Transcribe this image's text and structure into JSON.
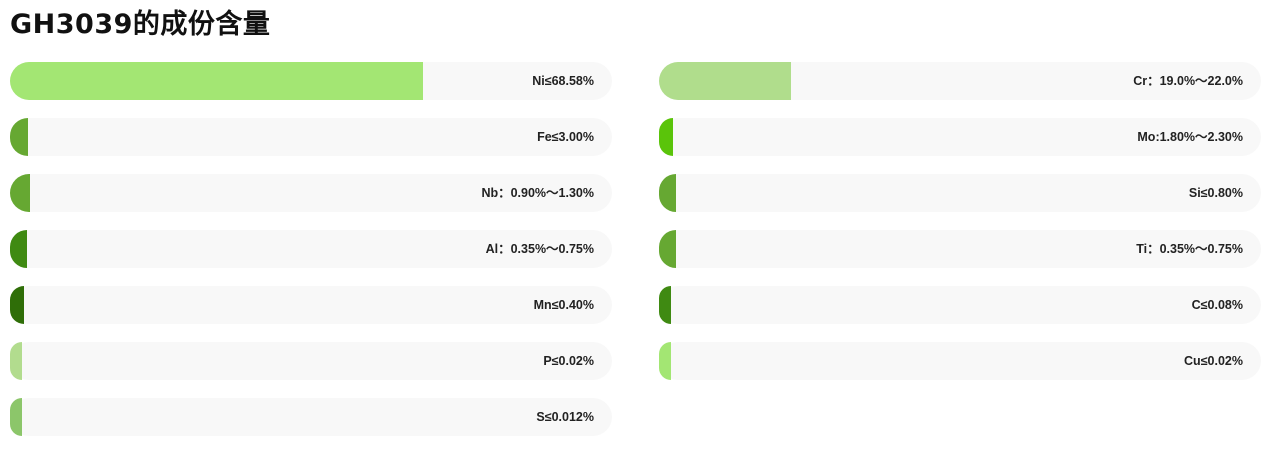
{
  "title": "GH3039的成份含量",
  "chart_data": {
    "type": "bar",
    "orientation": "horizontal",
    "title": "GH3039的成份含量",
    "xlim": [
      0,
      100
    ],
    "columns": [
      [
        {
          "label": "Ni≤68.58%",
          "value": 68.58,
          "color": "#a3e673"
        },
        {
          "label": "Fe≤3.00%",
          "value": 3.0,
          "color": "#66a832"
        },
        {
          "label": "Nb：0.90%～1.30%",
          "value": 1.3,
          "color": "#66a832"
        },
        {
          "label": "Al：0.35%～0.75%",
          "value": 0.75,
          "color": "#3f8a12"
        },
        {
          "label": "Mn≤0.40%",
          "value": 0.4,
          "color": "#2f6e08"
        },
        {
          "label": "P≤0.02%",
          "value": 0.02,
          "color": "#b2dc8e"
        },
        {
          "label": "S≤0.012%",
          "value": 0.012,
          "color": "#8cc66a"
        }
      ],
      [
        {
          "label": "Cr：19.0%～22.0%",
          "value": 22.0,
          "color": "#b0dd8c"
        },
        {
          "label": "Mo:1.80%～2.30%",
          "value": 2.3,
          "color": "#5ac40a"
        },
        {
          "label": "Si≤0.80%",
          "value": 0.8,
          "color": "#66a832"
        },
        {
          "label": "Ti：0.35%～0.75%",
          "value": 0.75,
          "color": "#66a832"
        },
        {
          "label": "C≤0.08%",
          "value": 0.08,
          "color": "#3f8a12"
        },
        {
          "label": "Cu≤0.02%",
          "value": 0.02,
          "color": "#a3e673"
        }
      ]
    ]
  }
}
